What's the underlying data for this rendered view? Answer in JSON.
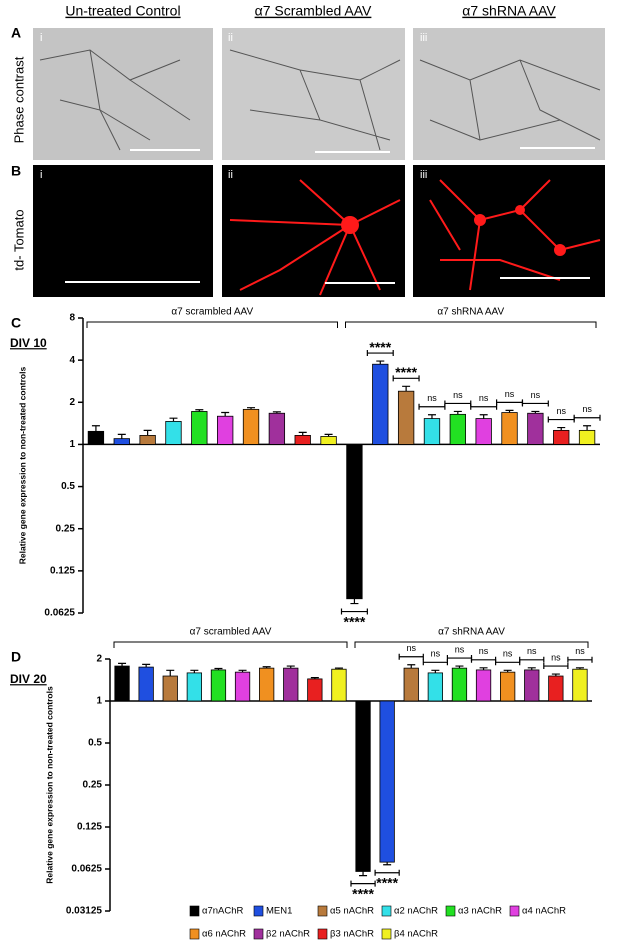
{
  "panels": {
    "columns": [
      "Un-treated Control",
      "α7 Scrambled AAV",
      "α7 shRNA AAV"
    ],
    "rows": [
      {
        "letter": "A",
        "label": "Phase contrast"
      },
      {
        "letter": "B",
        "label": "td- Tomato"
      }
    ],
    "numerals": [
      "i",
      "ii",
      "iii"
    ]
  },
  "chart_data": [
    {
      "type": "bar",
      "panel": "C",
      "title": "DIV 10",
      "y_label": "Relative gene expression to non-treated controls",
      "log_base": 2,
      "ylim": [
        0.0625,
        8
      ],
      "yticks": [
        0.0625,
        0.125,
        0.25,
        0.5,
        1,
        2,
        4,
        8
      ],
      "categories": [
        "α7 scrambled AAV",
        "α7 shRNA AAV"
      ],
      "series": [
        {
          "color": "#000000",
          "values": [
            1.24,
            0.079
          ],
          "errors": [
            0.12,
            0.006
          ]
        },
        {
          "color": "#1f4fe0",
          "values": [
            1.1,
            3.74
          ],
          "errors": [
            0.08,
            0.2
          ]
        },
        {
          "color": "#b87a3c",
          "values": [
            1.16,
            2.4
          ],
          "errors": [
            0.1,
            0.2
          ]
        },
        {
          "color": "#33e0e8",
          "values": [
            1.46,
            1.53
          ],
          "errors": [
            0.08,
            0.1
          ]
        },
        {
          "color": "#22e022",
          "values": [
            1.72,
            1.64
          ],
          "errors": [
            0.05,
            0.08
          ]
        },
        {
          "color": "#e040e0",
          "values": [
            1.59,
            1.53
          ],
          "errors": [
            0.1,
            0.1
          ]
        },
        {
          "color": "#f09020",
          "values": [
            1.78,
            1.69
          ],
          "errors": [
            0.05,
            0.06
          ]
        },
        {
          "color": "#a0309c",
          "values": [
            1.67,
            1.67
          ],
          "errors": [
            0.04,
            0.05
          ]
        },
        {
          "color": "#e82020",
          "values": [
            1.16,
            1.26
          ],
          "errors": [
            0.06,
            0.06
          ]
        },
        {
          "color": "#f0f020",
          "values": [
            1.14,
            1.26
          ],
          "errors": [
            0.04,
            0.1
          ]
        }
      ],
      "significance": [
        "****",
        "****",
        "****",
        "ns",
        "ns",
        "ns",
        "ns",
        "ns",
        "ns",
        "ns"
      ]
    },
    {
      "type": "bar",
      "panel": "D",
      "title": "DIV 20",
      "y_label": "Relative gene expression to non-treated controls",
      "log_base": 2,
      "ylim": [
        0.03125,
        2
      ],
      "yticks": [
        0.03125,
        0.0625,
        0.125,
        0.25,
        0.5,
        1,
        2
      ],
      "categories": [
        "α7 scrambled AAV",
        "α7 shRNA  AAV"
      ],
      "series": [
        {
          "name": "α7nAChR",
          "color": "#000000",
          "values": [
            1.78,
            0.06
          ],
          "errors": [
            0.08,
            0.004
          ]
        },
        {
          "name": "MEN1",
          "color": "#1f4fe0",
          "values": [
            1.75,
            0.07
          ],
          "errors": [
            0.08,
            0.003
          ]
        },
        {
          "name": "α5 nAChR",
          "color": "#b87a3c",
          "values": [
            1.51,
            1.72
          ],
          "errors": [
            0.15,
            0.1
          ]
        },
        {
          "name": "α2 nAChR",
          "color": "#33e0e8",
          "values": [
            1.59,
            1.59
          ],
          "errors": [
            0.07,
            0.07
          ]
        },
        {
          "name": "α3 nAChR",
          "color": "#22e022",
          "values": [
            1.67,
            1.72
          ],
          "errors": [
            0.04,
            0.06
          ]
        },
        {
          "name": "α4 nAChR",
          "color": "#e040e0",
          "values": [
            1.61,
            1.67
          ],
          "errors": [
            0.05,
            0.06
          ]
        },
        {
          "name": "α6 nAChR",
          "color": "#f09020",
          "values": [
            1.72,
            1.61
          ],
          "errors": [
            0.04,
            0.05
          ]
        },
        {
          "name": "β2 nAChR",
          "color": "#a0309c",
          "values": [
            1.72,
            1.67
          ],
          "errors": [
            0.06,
            0.06
          ]
        },
        {
          "name": "β3 nAChR",
          "color": "#e82020",
          "values": [
            1.44,
            1.51
          ],
          "errors": [
            0.03,
            0.05
          ]
        },
        {
          "name": "β4 nAChR",
          "color": "#f0f020",
          "values": [
            1.69,
            1.69
          ],
          "errors": [
            0.03,
            0.04
          ]
        }
      ],
      "significance": [
        "****",
        "****",
        "ns",
        "ns",
        "ns",
        "ns",
        "ns",
        "ns",
        "ns",
        "ns"
      ]
    }
  ]
}
